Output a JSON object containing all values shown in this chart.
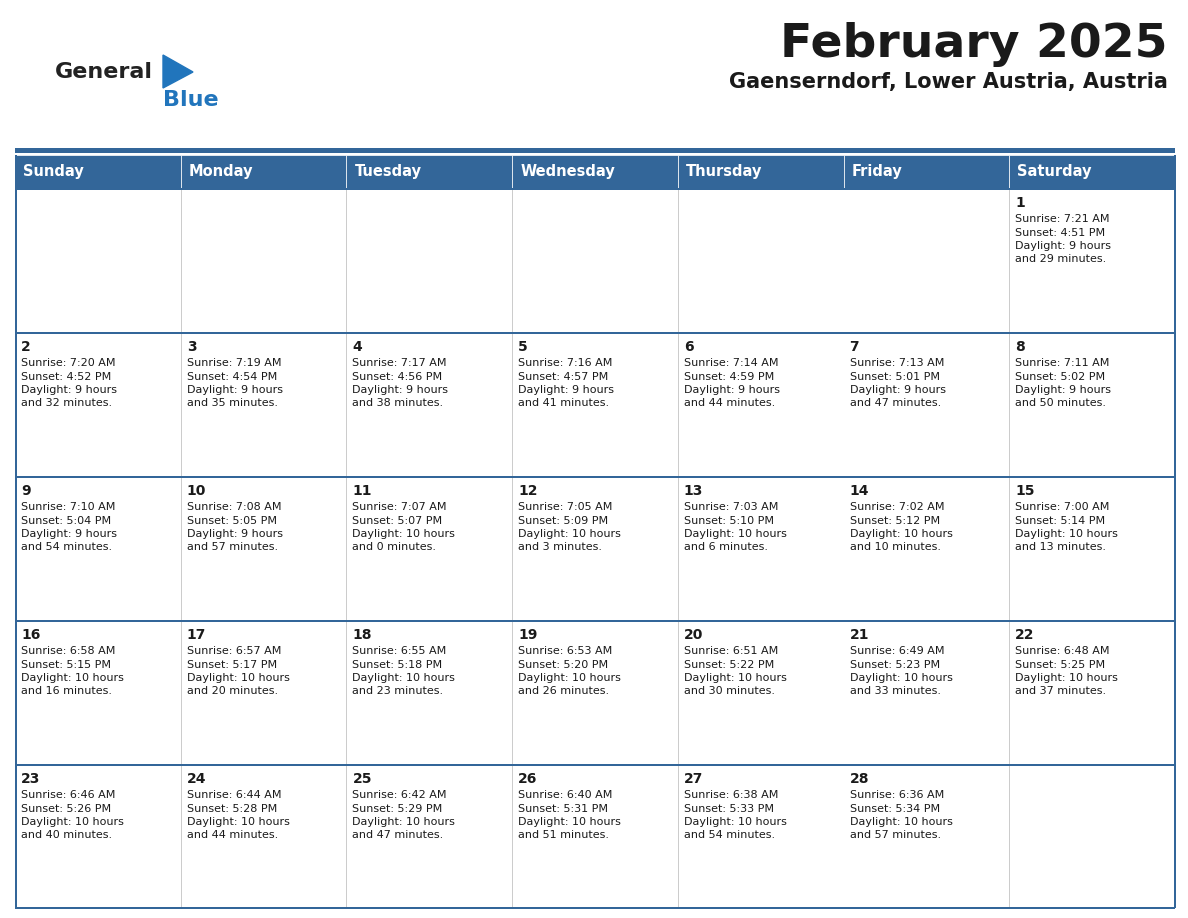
{
  "title": "February 2025",
  "subtitle": "Gaenserndorf, Lower Austria, Austria",
  "header_bg": "#336699",
  "header_text_color": "#FFFFFF",
  "cell_bg_light": "#F2F2F2",
  "cell_bg_white": "#FFFFFF",
  "border_color": "#336699",
  "day_names": [
    "Sunday",
    "Monday",
    "Tuesday",
    "Wednesday",
    "Thursday",
    "Friday",
    "Saturday"
  ],
  "title_color": "#1a1a1a",
  "subtitle_color": "#1a1a1a",
  "general_color": "#1a1a1a",
  "blue_color": "#2175BC",
  "days": [
    {
      "day": 1,
      "col": 6,
      "row": 0,
      "sunrise": "7:21 AM",
      "sunset": "4:51 PM",
      "daylight": "9 hours and 29 minutes"
    },
    {
      "day": 2,
      "col": 0,
      "row": 1,
      "sunrise": "7:20 AM",
      "sunset": "4:52 PM",
      "daylight": "9 hours and 32 minutes"
    },
    {
      "day": 3,
      "col": 1,
      "row": 1,
      "sunrise": "7:19 AM",
      "sunset": "4:54 PM",
      "daylight": "9 hours and 35 minutes"
    },
    {
      "day": 4,
      "col": 2,
      "row": 1,
      "sunrise": "7:17 AM",
      "sunset": "4:56 PM",
      "daylight": "9 hours and 38 minutes"
    },
    {
      "day": 5,
      "col": 3,
      "row": 1,
      "sunrise": "7:16 AM",
      "sunset": "4:57 PM",
      "daylight": "9 hours and 41 minutes"
    },
    {
      "day": 6,
      "col": 4,
      "row": 1,
      "sunrise": "7:14 AM",
      "sunset": "4:59 PM",
      "daylight": "9 hours and 44 minutes"
    },
    {
      "day": 7,
      "col": 5,
      "row": 1,
      "sunrise": "7:13 AM",
      "sunset": "5:01 PM",
      "daylight": "9 hours and 47 minutes"
    },
    {
      "day": 8,
      "col": 6,
      "row": 1,
      "sunrise": "7:11 AM",
      "sunset": "5:02 PM",
      "daylight": "9 hours and 50 minutes"
    },
    {
      "day": 9,
      "col": 0,
      "row": 2,
      "sunrise": "7:10 AM",
      "sunset": "5:04 PM",
      "daylight": "9 hours and 54 minutes"
    },
    {
      "day": 10,
      "col": 1,
      "row": 2,
      "sunrise": "7:08 AM",
      "sunset": "5:05 PM",
      "daylight": "9 hours and 57 minutes"
    },
    {
      "day": 11,
      "col": 2,
      "row": 2,
      "sunrise": "7:07 AM",
      "sunset": "5:07 PM",
      "daylight": "10 hours and 0 minutes"
    },
    {
      "day": 12,
      "col": 3,
      "row": 2,
      "sunrise": "7:05 AM",
      "sunset": "5:09 PM",
      "daylight": "10 hours and 3 minutes"
    },
    {
      "day": 13,
      "col": 4,
      "row": 2,
      "sunrise": "7:03 AM",
      "sunset": "5:10 PM",
      "daylight": "10 hours and 6 minutes"
    },
    {
      "day": 14,
      "col": 5,
      "row": 2,
      "sunrise": "7:02 AM",
      "sunset": "5:12 PM",
      "daylight": "10 hours and 10 minutes"
    },
    {
      "day": 15,
      "col": 6,
      "row": 2,
      "sunrise": "7:00 AM",
      "sunset": "5:14 PM",
      "daylight": "10 hours and 13 minutes"
    },
    {
      "day": 16,
      "col": 0,
      "row": 3,
      "sunrise": "6:58 AM",
      "sunset": "5:15 PM",
      "daylight": "10 hours and 16 minutes"
    },
    {
      "day": 17,
      "col": 1,
      "row": 3,
      "sunrise": "6:57 AM",
      "sunset": "5:17 PM",
      "daylight": "10 hours and 20 minutes"
    },
    {
      "day": 18,
      "col": 2,
      "row": 3,
      "sunrise": "6:55 AM",
      "sunset": "5:18 PM",
      "daylight": "10 hours and 23 minutes"
    },
    {
      "day": 19,
      "col": 3,
      "row": 3,
      "sunrise": "6:53 AM",
      "sunset": "5:20 PM",
      "daylight": "10 hours and 26 minutes"
    },
    {
      "day": 20,
      "col": 4,
      "row": 3,
      "sunrise": "6:51 AM",
      "sunset": "5:22 PM",
      "daylight": "10 hours and 30 minutes"
    },
    {
      "day": 21,
      "col": 5,
      "row": 3,
      "sunrise": "6:49 AM",
      "sunset": "5:23 PM",
      "daylight": "10 hours and 33 minutes"
    },
    {
      "day": 22,
      "col": 6,
      "row": 3,
      "sunrise": "6:48 AM",
      "sunset": "5:25 PM",
      "daylight": "10 hours and 37 minutes"
    },
    {
      "day": 23,
      "col": 0,
      "row": 4,
      "sunrise": "6:46 AM",
      "sunset": "5:26 PM",
      "daylight": "10 hours and 40 minutes"
    },
    {
      "day": 24,
      "col": 1,
      "row": 4,
      "sunrise": "6:44 AM",
      "sunset": "5:28 PM",
      "daylight": "10 hours and 44 minutes"
    },
    {
      "day": 25,
      "col": 2,
      "row": 4,
      "sunrise": "6:42 AM",
      "sunset": "5:29 PM",
      "daylight": "10 hours and 47 minutes"
    },
    {
      "day": 26,
      "col": 3,
      "row": 4,
      "sunrise": "6:40 AM",
      "sunset": "5:31 PM",
      "daylight": "10 hours and 51 minutes"
    },
    {
      "day": 27,
      "col": 4,
      "row": 4,
      "sunrise": "6:38 AM",
      "sunset": "5:33 PM",
      "daylight": "10 hours and 54 minutes"
    },
    {
      "day": 28,
      "col": 5,
      "row": 4,
      "sunrise": "6:36 AM",
      "sunset": "5:34 PM",
      "daylight": "10 hours and 57 minutes"
    }
  ]
}
